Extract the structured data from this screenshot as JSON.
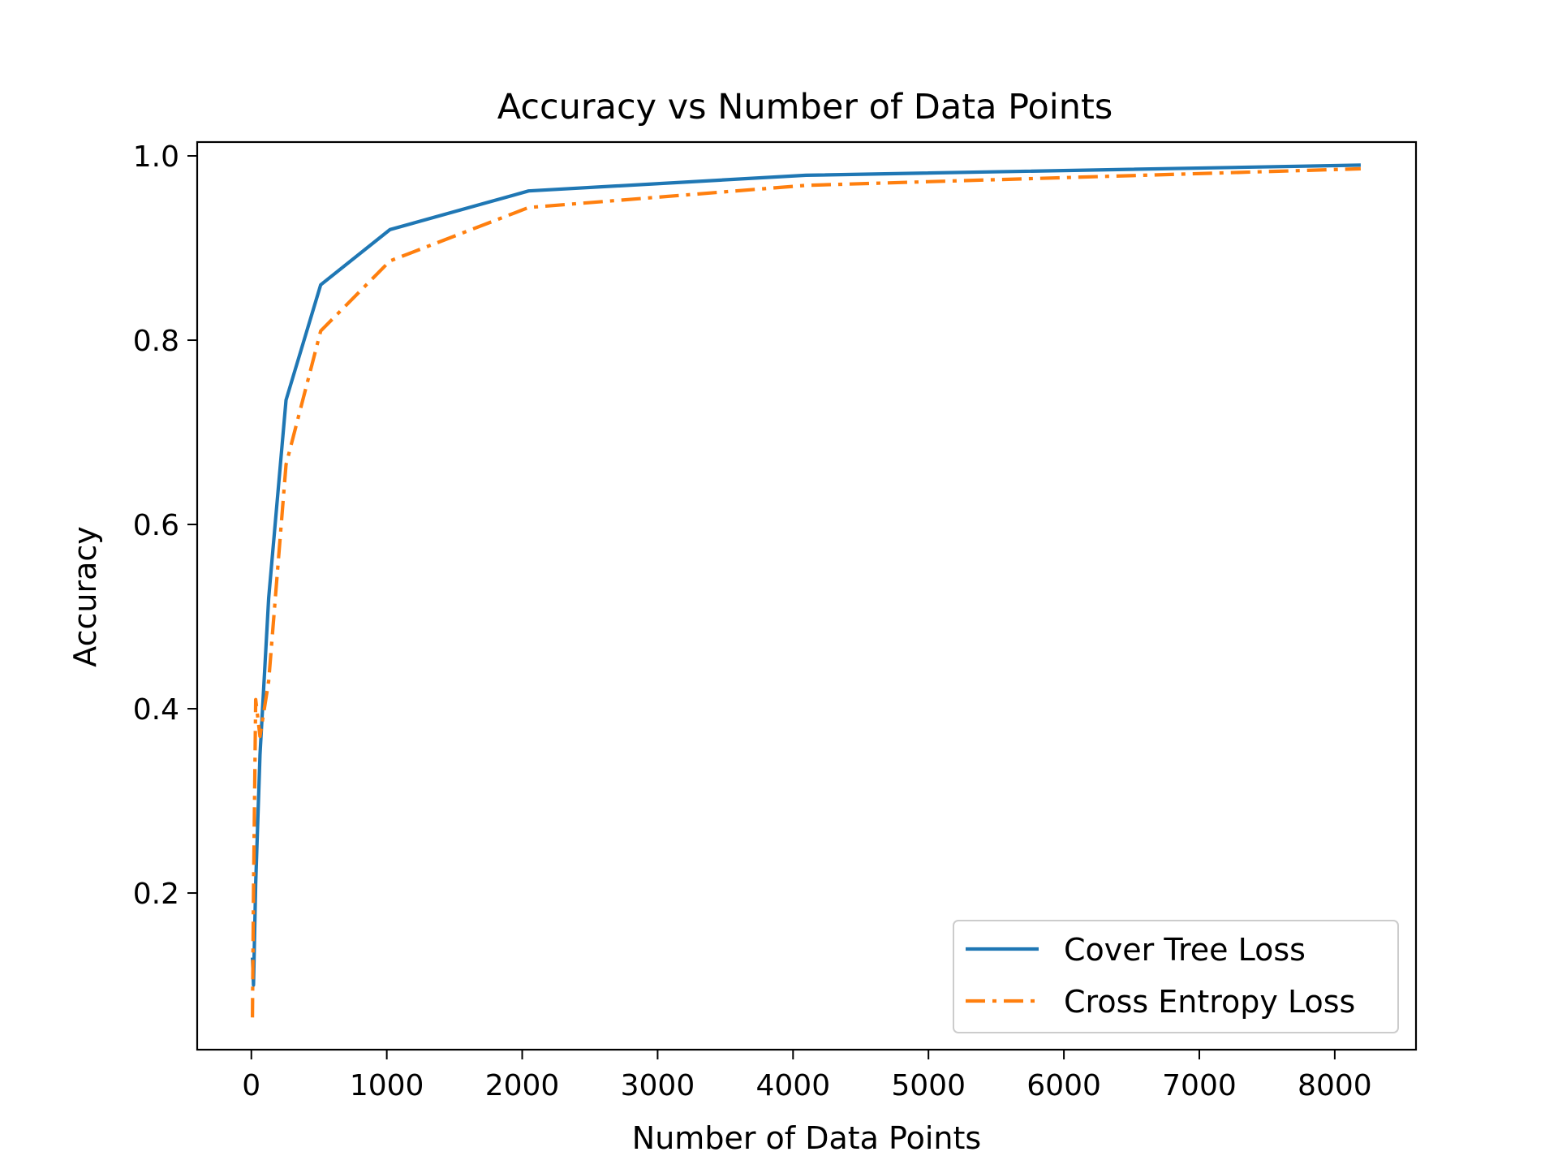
{
  "chart_data": {
    "type": "line",
    "title": "Accuracy vs Number of Data Points",
    "xlabel": "Number of Data Points",
    "ylabel": "Accuracy",
    "xlim": [
      -400,
      8600
    ],
    "ylim": [
      0.03,
      1.015
    ],
    "x_ticks": [
      0,
      1000,
      2000,
      3000,
      4000,
      5000,
      6000,
      7000,
      8000
    ],
    "x_tick_labels": [
      "0",
      "1000",
      "2000",
      "3000",
      "4000",
      "5000",
      "6000",
      "7000",
      "8000"
    ],
    "y_ticks": [
      0.2,
      0.4,
      0.6,
      0.8,
      1.0
    ],
    "y_tick_labels": [
      "0.2",
      "0.4",
      "0.6",
      "0.8",
      "1.0"
    ],
    "grid": false,
    "legend_position": "bottom-right",
    "series": [
      {
        "name": "Cover Tree Loss",
        "color": "#1f77b4",
        "line_style": "solid",
        "x": [
          8,
          16,
          32,
          64,
          128,
          256,
          512,
          1024,
          2048,
          4096,
          8192
        ],
        "y": [
          0.13,
          0.1,
          0.21,
          0.35,
          0.52,
          0.735,
          0.86,
          0.92,
          0.962,
          0.979,
          0.99
        ]
      },
      {
        "name": "Cross Entropy Loss",
        "color": "#ff7f0e",
        "line_style": "dash-dot",
        "x": [
          8,
          16,
          32,
          64,
          128,
          256,
          512,
          1024,
          2048,
          4096,
          8192
        ],
        "y": [
          0.065,
          0.2,
          0.41,
          0.37,
          0.43,
          0.665,
          0.81,
          0.886,
          0.944,
          0.968,
          0.986
        ]
      }
    ]
  }
}
